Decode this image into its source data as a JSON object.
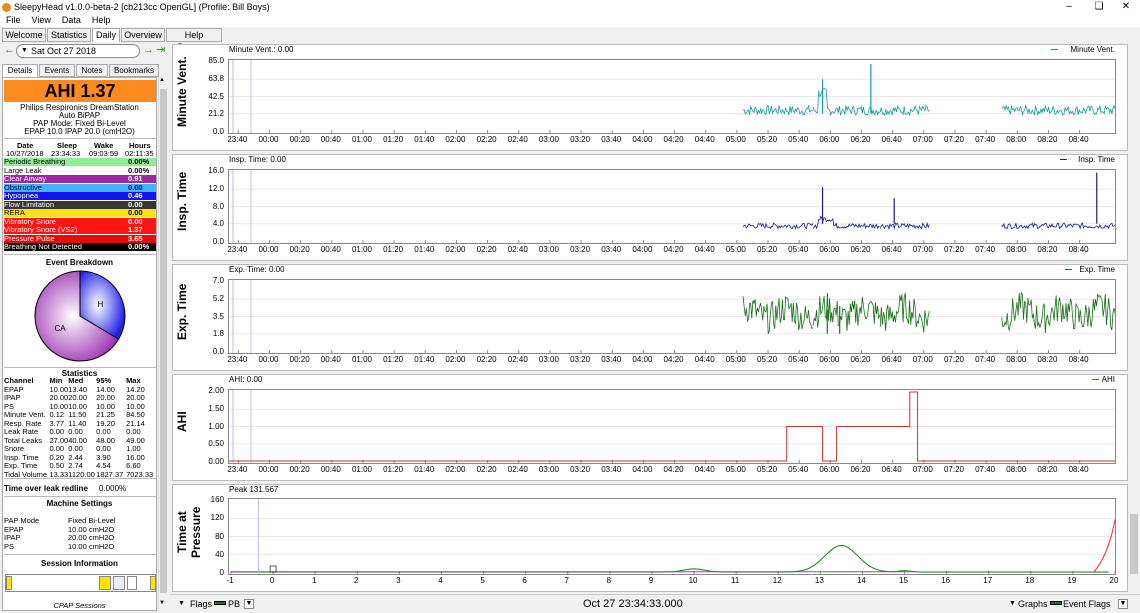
{
  "window": {
    "title": "SleepyHead v1.0.0-beta-2 [cb213cc OpenGL] (Profile: Bill Boys)"
  },
  "menu": [
    "File",
    "View",
    "Data",
    "Help"
  ],
  "tabs": [
    "Welcome",
    "Statistics",
    "Daily",
    "Overview",
    "Help Browser"
  ],
  "date": {
    "value": "Sat Oct 27 2018"
  },
  "subtabs": [
    "Details",
    "Events",
    "Notes",
    "Bookmarks"
  ],
  "summary": {
    "ahi": "AHI 1.37",
    "machine": "Philips Respironics DreamStation",
    "mode": "Auto BiPAP",
    "pap_mode": "PAP Mode: Fixed Bi-Level",
    "pressure": "EPAP 10.0 IPAP 20.0 (cmH2O)"
  },
  "sleep": {
    "headers": [
      "Date",
      "Sleep",
      "Wake",
      "Hours"
    ],
    "values": [
      "10/27/2018",
      "23:34:33",
      "09:03:59",
      "02:11:35"
    ]
  },
  "events": [
    {
      "label": "Periodic Breathing",
      "value": "0.00%",
      "bg": "#90ee90",
      "fg": "#000"
    },
    {
      "label": "Large Leak",
      "value": "0.00%",
      "bg": "#ffffff",
      "fg": "#000"
    },
    {
      "label": "Clear Airway",
      "value": "0.91",
      "bg": "#9d25a8",
      "fg": "#fff"
    },
    {
      "label": "Obstructive",
      "value": "0.00",
      "bg": "#40b4ff",
      "fg": "#000"
    },
    {
      "label": "Hypopnea",
      "value": "0.46",
      "bg": "#1414f0",
      "fg": "#fff"
    },
    {
      "label": "Flow Limitation",
      "value": "0.00",
      "bg": "#363636",
      "fg": "#fff"
    },
    {
      "label": "RERA",
      "value": "0.00",
      "bg": "#ffe014",
      "fg": "#000"
    },
    {
      "label": "Vibratory Snore",
      "value": "0.00",
      "bg": "#ff1414",
      "fg": "#fff"
    },
    {
      "label": "Vibratory Snore (VS2)",
      "value": "1.37",
      "bg": "#ff1414",
      "fg": "#fff"
    },
    {
      "label": "Pressure Pulse",
      "value": "3.65",
      "bg": "#e60a0a",
      "fg": "#fff"
    },
    {
      "label": "Breathing Not Detected",
      "value": "0.00%",
      "bg": "#000000",
      "fg": "#fff"
    }
  ],
  "event_breakdown": {
    "title": "Event Breakdown",
    "labels": [
      "CA",
      "H"
    ],
    "values": [
      0.91,
      0.46
    ],
    "colors": [
      "#a040b0",
      "#2020e0"
    ]
  },
  "statistics": {
    "title": "Statistics",
    "headers": [
      "Channel",
      "Min",
      "Med",
      "95%",
      "Max"
    ],
    "rows": [
      [
        "EPAP",
        "10.00",
        "13.40",
        "14.00",
        "14.20"
      ],
      [
        "IPAP",
        "20.00",
        "20.00",
        "20.00",
        "20.00"
      ],
      [
        "PS",
        "10.00",
        "10.00",
        "10.00",
        "10.00"
      ],
      [
        "Minute Vent.",
        "0.12",
        "11.50",
        "21.25",
        "84.50"
      ],
      [
        "Resp. Rate",
        "3.77",
        "11.40",
        "19.20",
        "21.14"
      ],
      [
        "Leak Rate",
        "0.00",
        "0.00",
        "0.00",
        "0.00"
      ],
      [
        "Total Leaks",
        "27.00",
        "40.00",
        "48.00",
        "49.00"
      ],
      [
        "Snore",
        "0.00",
        "0.00",
        "0.00",
        "1.00"
      ],
      [
        "Insp. Time",
        "0.20",
        "2.44",
        "3.90",
        "16.00"
      ],
      [
        "Exp. Time",
        "0.50",
        "2.74",
        "4.54",
        "6.60"
      ],
      [
        "Tidal Volume",
        "13.33",
        "1120.00",
        "1827.37",
        "7023.33"
      ]
    ]
  },
  "leak_redline": {
    "label": "Time over leak redline",
    "value": "0.000%"
  },
  "machine_settings": {
    "title": "Machine Settings",
    "rows": [
      [
        "PAP Mode",
        "Fixed Bi-Level"
      ],
      [
        "EPAP",
        "10.00 cmH2O"
      ],
      [
        "IPAP",
        "20.00 cmH2O"
      ],
      [
        "PS",
        "10.00 cmH2O"
      ]
    ]
  },
  "session_info": {
    "title": "Session Information",
    "footer": "CPAP Sessions"
  },
  "time_labels": [
    "23:40",
    "00:00",
    "00:20",
    "00:40",
    "01:00",
    "01:20",
    "01:40",
    "02:00",
    "02:20",
    "02:40",
    "03:00",
    "03:20",
    "03:40",
    "04:00",
    "04:20",
    "04:40",
    "05:00",
    "05:20",
    "05:40",
    "06:00",
    "06:20",
    "06:40",
    "07:00",
    "07:20",
    "07:40",
    "08:00",
    "08:20",
    "08:40"
  ],
  "graphs": [
    {
      "title": "Minute Vent.",
      "tl": "Minute Vent.: 0.00",
      "tr": "Minute Vent.",
      "color": "#1a9b9b",
      "y": [
        "85.0",
        "63.8",
        "42.5",
        "21.2",
        "0.0"
      ]
    },
    {
      "title": "Insp. Time",
      "tl": "Insp. Time: 0.00",
      "tr": "Insp. Time",
      "color": "#1a1a8c",
      "y": [
        "16.0",
        "12.0",
        "8.0",
        "4.0",
        "0.0"
      ]
    },
    {
      "title": "Exp. Time",
      "tl": "Exp. Time: 0.00",
      "tr": "Exp. Time",
      "color": "#1a6e1a",
      "y": [
        "7.0",
        "5.2",
        "3.5",
        "1.8",
        "0.0"
      ]
    },
    {
      "title": "AHI",
      "tl": "AHI: 0.00",
      "tr": "AHI",
      "color": "#c0392b",
      "y": [
        "2.00",
        "1.50",
        "1.00",
        "0.50",
        "0.00"
      ]
    },
    {
      "title": "Time at Pressure",
      "tl": "Peak 131.567",
      "tr": "",
      "color": "#1a7a1a",
      "y": [
        "160",
        "120",
        "80",
        "40",
        "0"
      ]
    }
  ],
  "pressure_x_labels": [
    "-1",
    "0",
    "1",
    "2",
    "3",
    "4",
    "5",
    "6",
    "7",
    "8",
    "9",
    "10",
    "11",
    "12",
    "13",
    "14",
    "15",
    "16",
    "17",
    "18",
    "19",
    "20"
  ],
  "bottom": {
    "flags": "Flags",
    "pb": "PB",
    "datetime": "Oct 27 23:34:33.000",
    "graphs": "Graphs",
    "event_flags": "Event Flags"
  }
}
